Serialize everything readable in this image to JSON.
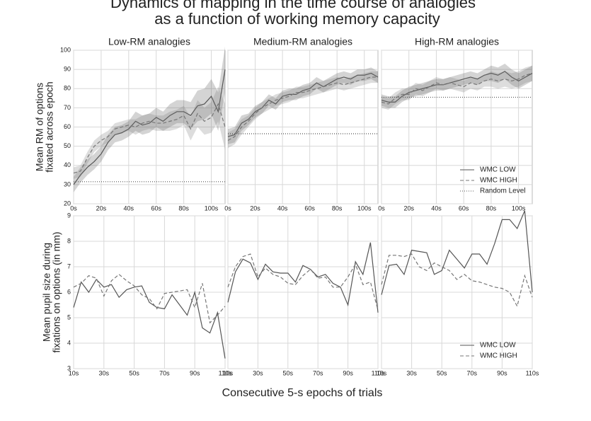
{
  "title": [
    "Dynamics of mapping in the time course of analogies",
    "as a function of working memory capacity"
  ],
  "xlabel": "Consecutive 5-s epochs of trials",
  "chart_data": [
    {
      "type": "line",
      "title": "Low-RM analogies",
      "ylabel": [
        "Mean RM of options",
        "fixated across epoch"
      ],
      "x": [
        0,
        5,
        10,
        15,
        20,
        25,
        30,
        35,
        40,
        45,
        50,
        55,
        60,
        65,
        70,
        75,
        80,
        85,
        90,
        95,
        100,
        105,
        110
      ],
      "xlim": [
        0,
        110
      ],
      "ylim": [
        20,
        100
      ],
      "yticks": [
        20,
        30,
        40,
        50,
        60,
        70,
        80,
        90,
        100
      ],
      "xticks": [
        {
          "value": 0,
          "label": "0s"
        },
        {
          "value": 20,
          "label": "20s"
        },
        {
          "value": 40,
          "label": "40s"
        },
        {
          "value": 60,
          "label": "60s"
        },
        {
          "value": 80,
          "label": "80s"
        },
        {
          "value": 100,
          "label": "100s"
        }
      ],
      "series": [
        {
          "color": "#555555",
          "style": "solid",
          "values": [
            30,
            35,
            39,
            42,
            46,
            52,
            56,
            57,
            59,
            63,
            61,
            62,
            65,
            63,
            66,
            68,
            68,
            66,
            71,
            72,
            76,
            68,
            90
          ],
          "error": [
            4,
            4,
            4,
            4,
            4,
            4,
            4,
            4,
            4,
            5,
            5,
            5,
            5,
            5,
            6,
            6,
            6,
            7,
            8,
            8,
            9,
            10,
            12
          ]
        },
        {
          "color": "#777777",
          "style": "dashed",
          "values": [
            36,
            37,
            44,
            50,
            53,
            55,
            59,
            60,
            61,
            60,
            62,
            63,
            62,
            62,
            63,
            64,
            66,
            59,
            67,
            63,
            65,
            72,
            60
          ],
          "error": [
            3,
            3,
            3,
            3,
            3,
            3,
            3,
            3,
            3,
            4,
            4,
            4,
            4,
            4,
            5,
            5,
            5,
            6,
            7,
            7,
            8,
            9,
            12
          ]
        },
        {
          "color": "#555555",
          "style": "dotted",
          "values": [
            31.5,
            31.5,
            31.5,
            31.5,
            31.5,
            31.5,
            31.5,
            31.5,
            31.5,
            31.5,
            31.5,
            31.5,
            31.5,
            31.5,
            31.5,
            31.5,
            31.5,
            31.5,
            31.5,
            31.5,
            31.5,
            31.5,
            31.5
          ]
        }
      ]
    },
    {
      "type": "line",
      "title": "Medium-RM analogies",
      "x": [
        0,
        5,
        10,
        15,
        20,
        25,
        30,
        35,
        40,
        45,
        50,
        55,
        60,
        65,
        70,
        75,
        80,
        85,
        90,
        95,
        100,
        105,
        110
      ],
      "xlim": [
        0,
        110
      ],
      "ylim": [
        20,
        100
      ],
      "yticks": [
        20,
        30,
        40,
        50,
        60,
        70,
        80,
        90,
        100
      ],
      "xticks": [
        {
          "value": 0,
          "label": "0s"
        },
        {
          "value": 20,
          "label": "20s"
        },
        {
          "value": 40,
          "label": "40s"
        },
        {
          "value": 60,
          "label": "60s"
        },
        {
          "value": 80,
          "label": "80s"
        },
        {
          "value": 100,
          "label": "100s"
        }
      ],
      "series": [
        {
          "color": "#555555",
          "style": "solid",
          "values": [
            55,
            56,
            62,
            64,
            68,
            70,
            74,
            72,
            76,
            77,
            77,
            79,
            80,
            83,
            81,
            83,
            85,
            86,
            85,
            87,
            87,
            88,
            86
          ],
          "error": [
            4,
            4,
            4,
            3,
            3,
            3,
            3,
            3,
            3,
            3,
            3,
            3,
            3,
            3,
            3,
            3,
            3,
            3,
            3,
            3,
            3,
            3,
            3
          ]
        },
        {
          "color": "#777777",
          "style": "dashed",
          "values": [
            53,
            55,
            60,
            63,
            67,
            70,
            72,
            74,
            75,
            76,
            78,
            78,
            79,
            80,
            81,
            82,
            83,
            82,
            83,
            84,
            85,
            86,
            86
          ],
          "error": [
            4,
            4,
            4,
            3,
            3,
            3,
            3,
            3,
            3,
            3,
            3,
            3,
            3,
            3,
            3,
            3,
            3,
            3,
            3,
            3,
            3,
            3,
            3
          ]
        },
        {
          "color": "#555555",
          "style": "dotted",
          "values": [
            56.5,
            56.5,
            56.5,
            56.5,
            56.5,
            56.5,
            56.5,
            56.5,
            56.5,
            56.5,
            56.5,
            56.5,
            56.5,
            56.5,
            56.5,
            56.5,
            56.5,
            56.5,
            56.5,
            56.5,
            56.5,
            56.5,
            56.5
          ]
        }
      ]
    },
    {
      "type": "line",
      "title": "High-RM analogies",
      "legend": "lower right",
      "x": [
        0,
        5,
        10,
        15,
        20,
        25,
        30,
        35,
        40,
        45,
        50,
        55,
        60,
        65,
        70,
        75,
        80,
        85,
        90,
        95,
        100,
        105,
        110
      ],
      "xlim": [
        0,
        110
      ],
      "ylim": [
        20,
        100
      ],
      "yticks": [
        20,
        30,
        40,
        50,
        60,
        70,
        80,
        90,
        100
      ],
      "xticks": [
        {
          "value": 0,
          "label": "0s"
        },
        {
          "value": 20,
          "label": "20s"
        },
        {
          "value": 40,
          "label": "40s"
        },
        {
          "value": 60,
          "label": "60s"
        },
        {
          "value": 80,
          "label": "80s"
        },
        {
          "value": 100,
          "label": "100s"
        }
      ],
      "series": [
        {
          "name": "WMC LOW",
          "color": "#555555",
          "style": "solid",
          "values": [
            74,
            73,
            73,
            76,
            78,
            79,
            80,
            81,
            82,
            82,
            83,
            84,
            85,
            86,
            85,
            87,
            88,
            87,
            89,
            86,
            84,
            86,
            88
          ],
          "error": [
            3,
            3,
            3,
            3,
            3,
            3,
            3,
            3,
            3,
            3,
            3,
            3,
            3,
            3,
            3,
            3,
            4,
            4,
            4,
            4,
            4,
            4,
            4
          ]
        },
        {
          "name": "WMC HIGH",
          "color": "#777777",
          "style": "dashed",
          "values": [
            73,
            72,
            75,
            77,
            77,
            80,
            79,
            81,
            83,
            82,
            83,
            82,
            81,
            83,
            82,
            84,
            85,
            84,
            85,
            84,
            85,
            87,
            88
          ],
          "error": [
            3,
            3,
            3,
            3,
            3,
            3,
            3,
            3,
            3,
            3,
            3,
            3,
            3,
            3,
            3,
            3,
            4,
            4,
            4,
            4,
            4,
            4,
            4
          ]
        },
        {
          "name": "Random Level",
          "color": "#555555",
          "style": "dotted",
          "values": [
            75.5,
            75.5,
            75.5,
            75.5,
            75.5,
            75.5,
            75.5,
            75.5,
            75.5,
            75.5,
            75.5,
            75.5,
            75.5,
            75.5,
            75.5,
            75.5,
            75.5,
            75.5,
            75.5,
            75.5,
            75.5,
            75.5,
            75.5
          ]
        }
      ]
    },
    {
      "type": "line",
      "ylabel": [
        "Mean pupil size during",
        "fixations on options (in mm)"
      ],
      "x": [
        10,
        15,
        20,
        25,
        30,
        35,
        40,
        45,
        50,
        55,
        60,
        65,
        70,
        75,
        80,
        85,
        90,
        95,
        100,
        105,
        110
      ],
      "xlim": [
        10,
        110
      ],
      "ylim": [
        3,
        9
      ],
      "yticks": [
        3,
        4,
        5,
        6,
        7,
        8,
        9
      ],
      "xticks": [
        {
          "value": 10,
          "label": "10s"
        },
        {
          "value": 30,
          "label": "30s"
        },
        {
          "value": 50,
          "label": "50s"
        },
        {
          "value": 70,
          "label": "70s"
        },
        {
          "value": 90,
          "label": "90s"
        },
        {
          "value": 110,
          "label": "110s"
        }
      ],
      "series": [
        {
          "color": "#555555",
          "style": "solid",
          "values": [
            5.4,
            6.4,
            6.0,
            6.5,
            6.2,
            6.3,
            5.8,
            6.1,
            6.2,
            6.25,
            5.6,
            5.4,
            5.35,
            5.9,
            5.5,
            5.1,
            6.0,
            4.6,
            4.4,
            5.2,
            3.4
          ]
        },
        {
          "color": "#777777",
          "style": "dashed",
          "values": [
            6.2,
            6.35,
            6.65,
            6.55,
            5.85,
            6.45,
            6.7,
            6.45,
            6.25,
            5.9,
            5.75,
            5.35,
            5.95,
            6.0,
            6.05,
            6.1,
            5.4,
            6.35,
            4.8,
            5.1,
            5.45
          ]
        }
      ]
    },
    {
      "type": "line",
      "x": [
        10,
        15,
        20,
        25,
        30,
        35,
        40,
        45,
        50,
        55,
        60,
        65,
        70,
        75,
        80,
        85,
        90,
        95,
        100,
        105,
        110
      ],
      "xlim": [
        10,
        110
      ],
      "ylim": [
        3,
        9
      ],
      "yticks": [
        3,
        4,
        5,
        6,
        7,
        8,
        9
      ],
      "xticks": [
        {
          "value": 10,
          "label": "10s"
        },
        {
          "value": 30,
          "label": "30s"
        },
        {
          "value": 50,
          "label": "50s"
        },
        {
          "value": 70,
          "label": "70s"
        },
        {
          "value": 90,
          "label": "90s"
        },
        {
          "value": 110,
          "label": "110s"
        }
      ],
      "series": [
        {
          "color": "#555555",
          "style": "solid",
          "values": [
            5.6,
            6.8,
            7.3,
            7.15,
            6.5,
            7.1,
            6.8,
            6.75,
            6.75,
            6.4,
            7.05,
            6.9,
            6.6,
            6.7,
            6.35,
            6.2,
            5.5,
            7.2,
            6.7,
            7.95,
            5.2
          ]
        },
        {
          "color": "#777777",
          "style": "dashed",
          "values": [
            6.2,
            7.0,
            7.4,
            7.5,
            6.6,
            6.95,
            6.7,
            6.6,
            6.35,
            6.3,
            6.65,
            6.9,
            6.55,
            6.6,
            6.2,
            6.2,
            6.6,
            7.1,
            6.3,
            6.4,
            5.3
          ]
        }
      ]
    },
    {
      "type": "line",
      "legend": "lower right",
      "x": [
        10,
        15,
        20,
        25,
        30,
        35,
        40,
        45,
        50,
        55,
        60,
        65,
        70,
        75,
        80,
        85,
        90,
        95,
        100,
        105,
        110
      ],
      "xlim": [
        10,
        110
      ],
      "ylim": [
        3,
        9
      ],
      "yticks": [
        3,
        4,
        5,
        6,
        7,
        8,
        9
      ],
      "xticks": [
        {
          "value": 10,
          "label": "10s"
        },
        {
          "value": 30,
          "label": "30s"
        },
        {
          "value": 50,
          "label": "50s"
        },
        {
          "value": 70,
          "label": "70s"
        },
        {
          "value": 90,
          "label": "90s"
        },
        {
          "value": 110,
          "label": "110s"
        }
      ],
      "series": [
        {
          "name": "WMC LOW",
          "color": "#555555",
          "style": "solid",
          "values": [
            5.9,
            7.05,
            7.1,
            6.7,
            7.65,
            7.6,
            7.55,
            6.7,
            6.85,
            7.65,
            7.3,
            6.95,
            7.5,
            7.5,
            7.1,
            7.9,
            8.85,
            8.85,
            8.5,
            9.2,
            6.0
          ]
        },
        {
          "name": "WMC HIGH",
          "color": "#777777",
          "style": "dashed",
          "values": [
            6.3,
            7.45,
            7.45,
            7.4,
            7.5,
            7.0,
            6.85,
            7.15,
            7.0,
            6.85,
            6.5,
            6.7,
            6.45,
            6.4,
            6.3,
            6.2,
            6.15,
            6.0,
            5.45,
            6.65,
            5.8
          ]
        }
      ]
    }
  ]
}
